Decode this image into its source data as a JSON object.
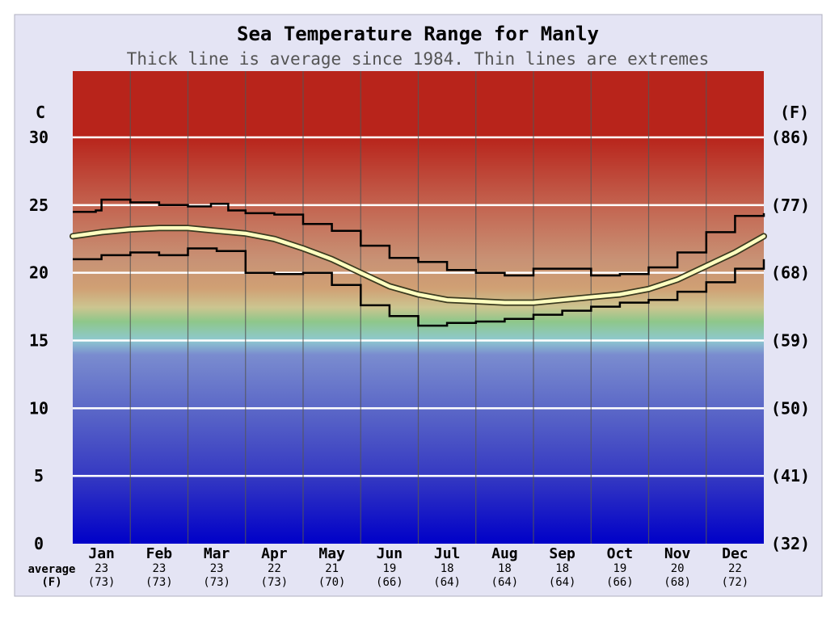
{
  "chart_data": {
    "type": "line",
    "title": "Sea Temperature Range for Manly",
    "subtitle": "Thick line is average since 1984. Thin lines are extremes",
    "y_label_left": "C",
    "y_label_right": "(F)",
    "ylim": [
      0,
      35
    ],
    "yticks_c": [
      "30",
      "25",
      "20",
      "15",
      "10",
      "5",
      "0"
    ],
    "yticks_f": [
      "(86)",
      "(77)",
      "(68)",
      "(59)",
      "(50)",
      "(41)",
      "(32)"
    ],
    "categories": [
      "Jan",
      "Feb",
      "Mar",
      "Apr",
      "May",
      "Jun",
      "Jul",
      "Aug",
      "Sep",
      "Oct",
      "Nov",
      "Dec"
    ],
    "avg_row_label_1": "average",
    "avg_row_label_2": "(F)",
    "monthly_average_c": [
      "23",
      "23",
      "23",
      "22",
      "21",
      "19",
      "18",
      "18",
      "18",
      "19",
      "20",
      "22"
    ],
    "monthly_average_f": [
      "(73)",
      "(73)",
      "(73)",
      "(73)",
      "(70)",
      "(66)",
      "(64)",
      "(64)",
      "(64)",
      "(66)",
      "(68)",
      "(72)"
    ],
    "grid": true,
    "series": [
      {
        "role": "max_extreme",
        "x_month": [
          0,
          0.4,
          0.5,
          1.0,
          1.5,
          2.0,
          2.4,
          2.7,
          3.0,
          3.5,
          4.0,
          4.5,
          5.0,
          5.5,
          6.0,
          6.5,
          7.0,
          7.5,
          8.0,
          8.5,
          9.0,
          9.5,
          10.0,
          10.5,
          11.0,
          11.5,
          12.0
        ],
        "values_c": [
          24.5,
          24.6,
          25.4,
          25.2,
          25.0,
          24.9,
          25.1,
          24.6,
          24.4,
          24.3,
          23.6,
          23.1,
          22.0,
          21.1,
          20.8,
          20.2,
          20.0,
          19.8,
          20.3,
          20.3,
          19.8,
          19.9,
          20.4,
          21.5,
          23.0,
          24.2,
          24.4
        ],
        "color": "#000000"
      },
      {
        "role": "average",
        "x_month": [
          0,
          0.5,
          1.0,
          1.5,
          2.0,
          2.5,
          3.0,
          3.5,
          4.0,
          4.5,
          5.0,
          5.5,
          6.0,
          6.5,
          7.0,
          7.5,
          8.0,
          8.5,
          9.0,
          9.5,
          10.0,
          10.5,
          11.0,
          11.5,
          12.0
        ],
        "values_c": [
          22.7,
          23.0,
          23.2,
          23.3,
          23.3,
          23.1,
          22.9,
          22.5,
          21.8,
          21.0,
          20.0,
          19.0,
          18.4,
          18.0,
          17.9,
          17.8,
          17.8,
          18.0,
          18.2,
          18.4,
          18.8,
          19.5,
          20.5,
          21.5,
          22.7
        ],
        "color": "#ffffc0"
      },
      {
        "role": "min_extreme",
        "x_month": [
          0,
          0.5,
          1.0,
          1.5,
          2.0,
          2.5,
          3.0,
          3.5,
          4.0,
          4.5,
          5.0,
          5.5,
          6.0,
          6.5,
          7.0,
          7.5,
          8.0,
          8.5,
          9.0,
          9.5,
          10.0,
          10.5,
          11.0,
          11.5,
          12.0
        ],
        "values_c": [
          21.0,
          21.3,
          21.5,
          21.3,
          21.8,
          21.6,
          20.0,
          19.9,
          20.0,
          19.1,
          17.6,
          16.8,
          16.1,
          16.3,
          16.4,
          16.6,
          16.9,
          17.2,
          17.5,
          17.8,
          18.0,
          18.6,
          19.3,
          20.3,
          21.0
        ],
        "color": "#000000"
      }
    ],
    "colors": {
      "background": "#e4e4f4",
      "warm_band": "#b8241b",
      "cold_band": "#0000c8",
      "gridline": "#ffffff",
      "month_divider": "#555555",
      "text": "#000000"
    }
  }
}
